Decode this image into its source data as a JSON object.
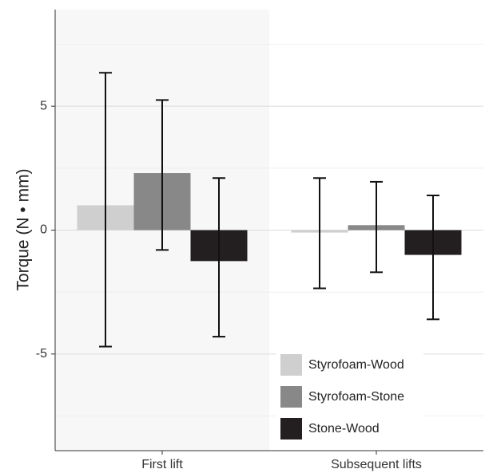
{
  "chart_data": {
    "type": "bar",
    "title": "",
    "xlabel": "",
    "ylabel": "Torque (N • mm)",
    "categories": [
      "First lift",
      "Subsequent lifts"
    ],
    "ylim": [
      -8.9,
      8.9
    ],
    "yticks": [
      -5,
      0,
      5
    ],
    "ytick_labels": [
      "-5",
      "0",
      "5"
    ],
    "grid": true,
    "legend_position": "bottom-right",
    "highlight_category": "First lift",
    "series": [
      {
        "name": "Styrofoam-Wood",
        "color": "#cfcfcf",
        "values": [
          1.0,
          -0.1
        ],
        "err_low": [
          -4.7,
          -2.35
        ],
        "err_high": [
          6.35,
          2.1
        ]
      },
      {
        "name": "Styrofoam-Stone",
        "color": "#888888",
        "values": [
          2.3,
          0.2
        ],
        "err_low": [
          -0.8,
          -1.7
        ],
        "err_high": [
          5.25,
          1.95
        ]
      },
      {
        "name": "Stone-Wood",
        "color": "#231f20",
        "values": [
          -1.25,
          -1.0
        ],
        "err_low": [
          -4.3,
          -3.6
        ],
        "err_high": [
          2.1,
          1.4
        ]
      }
    ]
  }
}
